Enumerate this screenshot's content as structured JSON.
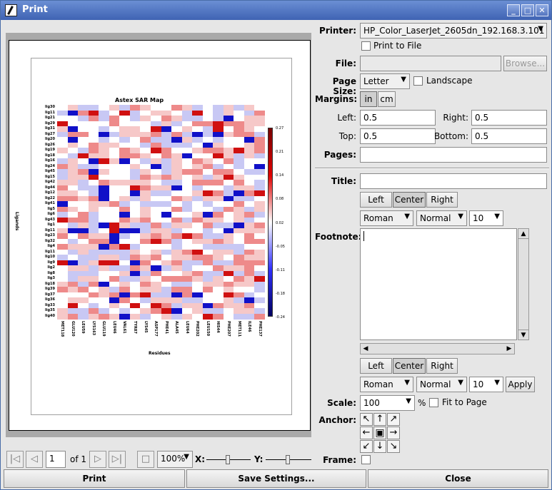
{
  "window": {
    "title": "Print"
  },
  "preview": {
    "chart_title": "Astex SAR Map",
    "y_title": "Ligands",
    "x_title": "Residues",
    "ligands": [
      "lig30",
      "lig11",
      "lig21",
      "lig29",
      "lig31",
      "lig27",
      "lig20",
      "lig26",
      "lig19",
      "lig18",
      "lig16",
      "lig24",
      "lig45",
      "lig15",
      "lig42",
      "lig44",
      "lig12",
      "lig22",
      "lig41",
      "lig5",
      "lig6",
      "lig43",
      "lig1",
      "lig11",
      "lig23",
      "lig32",
      "lig4",
      "lig11",
      "lig10",
      "lig9",
      "lig2",
      "lig8",
      "lig3",
      "lig18",
      "lig39",
      "lig37",
      "lig36",
      "lig33",
      "lig35",
      "lig40"
    ],
    "residues": [
      "MET118",
      "GLU120",
      "LEU59",
      "LYS163",
      "GLU119",
      "LEU46",
      "VAL61",
      "TYR87",
      "LYS45",
      "ASP177",
      "PHE41",
      "ALA45",
      "LEU64",
      "PHE202",
      "LEU150",
      "HIS44",
      "PHE207",
      "MET111",
      "ILE46",
      "PHE137"
    ],
    "colorbar_ticks": [
      "0.27",
      "0.21",
      "0.14",
      "0.08",
      "0.02",
      "-0.05",
      "-0.11",
      "-0.18",
      "-0.24"
    ]
  },
  "form": {
    "printer_label": "Printer:",
    "printer_value": "HP_Color_LaserJet_2605dn_192.168.3.101",
    "print_to_file": "Print to File",
    "file_label": "File:",
    "browse": "Browse...",
    "page_size_label": "Page Size:",
    "page_size_value": "Letter",
    "landscape": "Landscape",
    "margins_label": "Margins:",
    "unit_in": "in",
    "unit_cm": "cm",
    "left_label": "Left:",
    "left_value": "0.5",
    "right_label": "Right:",
    "right_value": "0.5",
    "top_label": "Top:",
    "top_value": "0.5",
    "bottom_label": "Bottom:",
    "bottom_value": "0.5",
    "pages_label": "Pages:",
    "title_label": "Title:",
    "align_left": "Left",
    "align_center": "Center",
    "align_right": "Right",
    "font_family": "Roman",
    "font_style": "Normal",
    "font_size": "10",
    "footnote_label": "Footnote:",
    "apply": "Apply",
    "scale_label": "Scale:",
    "scale_value": "100",
    "scale_unit": "%",
    "fit_to_page": "Fit to Page",
    "anchor_label": "Anchor:",
    "frame_label": "Frame:"
  },
  "nav": {
    "page_value": "1",
    "of_total": "of 1",
    "zoom": "100%",
    "x_label": "X:",
    "y_label": "Y:"
  },
  "buttons": {
    "print": "Print",
    "save_settings": "Save Settings...",
    "close": "Close"
  },
  "colors": {
    "title_bar": "#4f72c0",
    "heat_red": "#e00000",
    "heat_blue": "#2020ff"
  }
}
